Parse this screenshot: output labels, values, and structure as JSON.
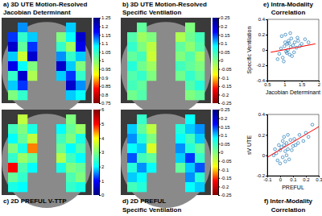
{
  "chart_data": [
    {
      "type": "heatmap",
      "title": [
        "a) 3D UTE Motion-Resolved",
        "Jacobian Determinant"
      ],
      "colors": [
        "#7f0000",
        "#ff0000",
        "#ffff00",
        "#7fff7f",
        "#00ffff",
        "#0000ff",
        "#00007f"
      ],
      "cells": [
        [
          null,
          1.12,
          null,
          null,
          null,
          null,
          1.1,
          null
        ],
        [
          1.15,
          1.05,
          1.1,
          null,
          null,
          1.0,
          1.08,
          1.2
        ],
        [
          1.2,
          1.02,
          1.15,
          null,
          null,
          1.05,
          0.98,
          1.18
        ],
        [
          1.1,
          0.95,
          1.2,
          null,
          null,
          1.12,
          1.05,
          1.1
        ],
        [
          1.18,
          1.08,
          1.0,
          null,
          null,
          1.2,
          1.1,
          1.0
        ],
        [
          1.05,
          1.2,
          0.97,
          null,
          null,
          1.1,
          1.15,
          1.05
        ],
        [
          1.1,
          1.15,
          null,
          null,
          null,
          null,
          1.2,
          1.12
        ],
        [
          1.0,
          1.05,
          null,
          null,
          null,
          null,
          1.1,
          1.08
        ]
      ],
      "colorbar": {
        "range": [
          0.75,
          1.25
        ],
        "ticks": [
          0.75,
          0.8,
          0.85,
          0.9,
          0.95,
          1,
          1.05,
          1.1,
          1.15,
          1.2,
          1.25
        ]
      }
    },
    {
      "type": "heatmap",
      "title": [
        "b) 3D UTE Motion-Resolved",
        "Specific Ventilation"
      ],
      "colors": [
        "#7f0000",
        "#ff0000",
        "#ffff00",
        "#7fff7f",
        "#00ffff",
        "#0000ff",
        "#00007f"
      ],
      "cells": [
        [
          null,
          0.02,
          null,
          null,
          null,
          null,
          0.0,
          null
        ],
        [
          0.03,
          -0.02,
          0.0,
          null,
          null,
          -0.03,
          0.01,
          0.04
        ],
        [
          0.05,
          0.0,
          -0.04,
          null,
          null,
          0.02,
          -0.01,
          0.03
        ],
        [
          0.02,
          0.04,
          -0.05,
          null,
          null,
          0.0,
          0.03,
          -0.02
        ],
        [
          0.06,
          0.01,
          -0.02,
          null,
          null,
          0.04,
          0.02,
          0.0
        ],
        [
          0.03,
          0.05,
          0.0,
          null,
          null,
          0.01,
          0.05,
          0.02
        ],
        [
          0.04,
          0.02,
          null,
          null,
          null,
          null,
          0.03,
          0.06
        ],
        [
          0.01,
          0.03,
          null,
          null,
          null,
          null,
          0.0,
          0.02
        ]
      ],
      "colorbar": {
        "range": [
          -0.25,
          0.25
        ],
        "ticks": [
          -0.25,
          -0.2,
          -0.15,
          -0.1,
          -0.05,
          0,
          0.05,
          0.1,
          0.15,
          0.2,
          0.25
        ]
      }
    },
    {
      "type": "heatmap",
      "title": [
        "c) 2D PREFUL V-TTP"
      ],
      "colors": [
        "#00007f",
        "#0000ff",
        "#00ffff",
        "#7fff7f",
        "#ffff00",
        "#ff0000",
        "#7f0000"
      ],
      "cells": [
        [
          null,
          3.5,
          null,
          null,
          null,
          null,
          3.0,
          null
        ],
        [
          2.5,
          3.0,
          2.2,
          null,
          null,
          2.0,
          2.8,
          3.2
        ],
        [
          2.0,
          2.8,
          3.5,
          null,
          null,
          2.5,
          3.0,
          2.2
        ],
        [
          3.0,
          2.2,
          4.5,
          null,
          null,
          2.8,
          2.0,
          2.6
        ],
        [
          2.4,
          3.2,
          2.8,
          null,
          null,
          3.4,
          2.5,
          2.0
        ],
        [
          5.0,
          2.6,
          2.0,
          null,
          null,
          2.2,
          3.0,
          2.8
        ],
        [
          2.8,
          2.4,
          null,
          null,
          null,
          null,
          2.6,
          3.0
        ],
        [
          2.2,
          2.0,
          null,
          null,
          null,
          null,
          2.4,
          2.2
        ]
      ],
      "colorbar": {
        "range": [
          0,
          6
        ],
        "ticks": [
          0,
          1,
          2,
          3,
          4,
          5,
          6
        ]
      }
    },
    {
      "type": "heatmap",
      "title": [
        "d) 2D PREFUL",
        "Specific Ventilation"
      ],
      "colors": [
        "#7f0000",
        "#ff0000",
        "#ffff00",
        "#7fff7f",
        "#00ffff",
        "#0000ff",
        "#00007f"
      ],
      "cells": [
        [
          null,
          0.05,
          null,
          null,
          null,
          null,
          0.08,
          null
        ],
        [
          0.1,
          0.02,
          -0.04,
          null,
          null,
          0.06,
          0.1,
          0.12
        ],
        [
          0.12,
          0.06,
          0.0,
          null,
          null,
          0.08,
          0.04,
          0.1
        ],
        [
          0.08,
          0.1,
          -0.06,
          null,
          null,
          0.12,
          0.06,
          0.02
        ],
        [
          0.14,
          0.04,
          0.02,
          null,
          null,
          0.1,
          0.15,
          0.05
        ],
        [
          0.06,
          0.12,
          0.08,
          null,
          null,
          0.02,
          0.1,
          0.14
        ],
        [
          0.1,
          0.08,
          null,
          null,
          null,
          null,
          0.12,
          0.06
        ],
        [
          0.04,
          0.06,
          null,
          null,
          null,
          null,
          0.08,
          0.1
        ]
      ],
      "colorbar": {
        "range": [
          -0.25,
          0.25
        ],
        "ticks": [
          -0.25,
          -0.2,
          -0.15,
          -0.1,
          -0.05,
          0,
          0.05,
          0.1,
          0.15,
          0.2,
          0.25
        ]
      }
    },
    {
      "type": "scatter",
      "title": [
        "e) Intra-Modality",
        "Correlation"
      ],
      "xlabel": "Jacobian Determinant",
      "ylabel": "Specific Ventilation",
      "xlim": [
        0.5,
        2
      ],
      "xticks": [
        0.5,
        1,
        1.5,
        2
      ],
      "ylim": [
        -0.4,
        0.4
      ],
      "yticks": [
        -0.4,
        -0.2,
        0,
        0.2,
        0.4
      ],
      "series": [
        {
          "type": "scatter",
          "marker": "circle-open",
          "color": "#1f77b4",
          "x": [
            0.85,
            0.9,
            0.95,
            1.0,
            1.02,
            1.05,
            1.08,
            1.1,
            1.12,
            1.15,
            1.18,
            1.2,
            1.22,
            1.25,
            1.3,
            1.35,
            1.4,
            1.45,
            1.5,
            1.6,
            0.8,
            0.92,
            0.98,
            1.03,
            1.07,
            1.13,
            1.17,
            1.28,
            1.38,
            1.7
          ],
          "values": [
            -0.05,
            0.02,
            -0.1,
            0.05,
            0.1,
            -0.02,
            0.08,
            0.0,
            0.12,
            -0.06,
            0.04,
            0.15,
            -0.08,
            0.06,
            0.1,
            0.03,
            0.12,
            0.05,
            0.08,
            0.14,
            -0.12,
            0.18,
            -0.15,
            0.2,
            -0.04,
            0.09,
            0.22,
            -0.03,
            0.16,
            0.1
          ]
        },
        {
          "type": "line",
          "color": "#ff0000",
          "x": [
            0.6,
            1.9
          ],
          "values": [
            -0.03,
            0.08
          ]
        }
      ]
    },
    {
      "type": "scatter",
      "title": [
        "f) Inter-Modality",
        "Correlation"
      ],
      "xlabel": "PREFUL",
      "ylabel": "sV UTE",
      "xlim": [
        -0.1,
        0.3
      ],
      "xticks": [
        -0.1,
        0,
        0.1,
        0.2,
        0.3
      ],
      "ylim": [
        -0.2,
        0.4
      ],
      "yticks": [
        -0.2,
        0,
        0.2,
        0.4
      ],
      "series": [
        {
          "type": "scatter",
          "marker": "circle-open",
          "color": "#1f77b4",
          "x": [
            -0.05,
            -0.03,
            -0.02,
            0,
            0.01,
            0.02,
            0.03,
            0.04,
            0.05,
            0.06,
            0.07,
            0.08,
            0.1,
            0.12,
            0.15,
            0.18,
            0.2,
            0.22,
            -0.04,
            0,
            0.02,
            0.05,
            0.09,
            0.11,
            0.14,
            0.03,
            -0.01,
            0.06,
            0.25,
            0.04
          ],
          "values": [
            0,
            0.02,
            -0.05,
            0.05,
            0.08,
            -0.02,
            0.1,
            0.04,
            0.12,
            0.06,
            -0.04,
            0.15,
            0.09,
            0.1,
            0.2,
            0.14,
            0.22,
            0.18,
            0.06,
            -0.08,
            0.14,
            0.0,
            0.05,
            0.16,
            0.12,
            0.18,
            0.1,
            0.2,
            0.3,
            -0.06
          ]
        },
        {
          "type": "line",
          "color": "#ff0000",
          "x": [
            -0.1,
            0.3
          ],
          "values": [
            -0.02,
            0.28
          ]
        }
      ]
    }
  ]
}
